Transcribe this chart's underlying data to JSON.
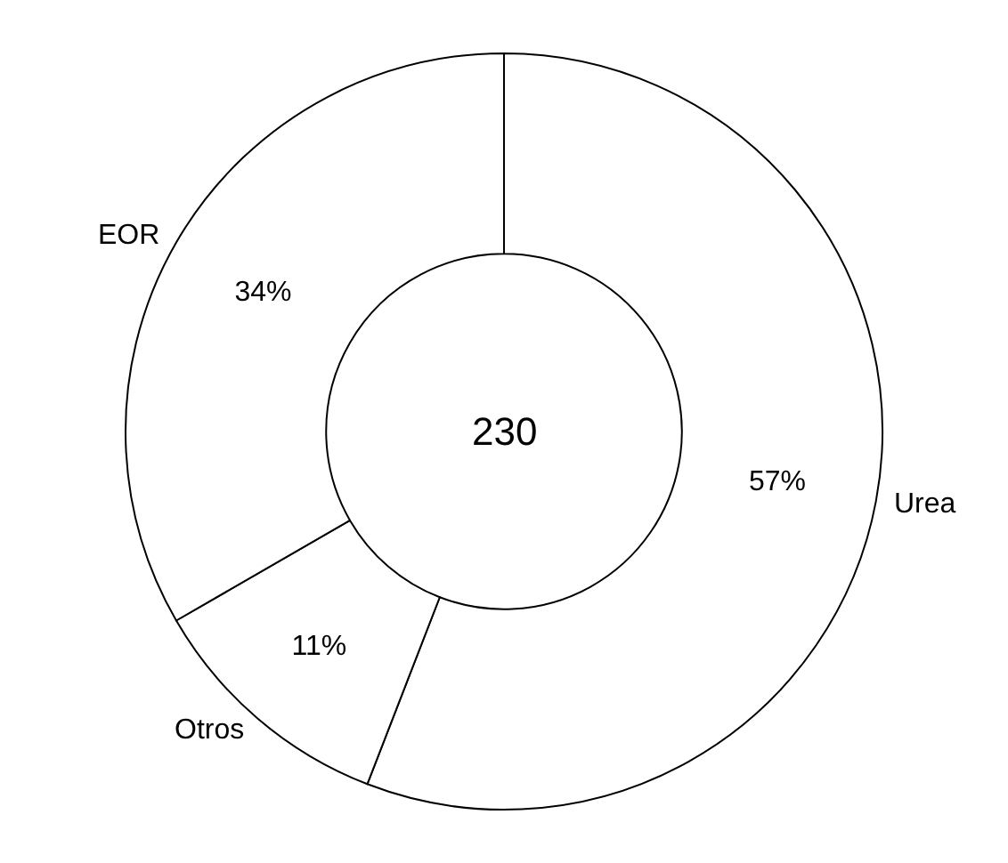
{
  "chart_data": {
    "type": "donut",
    "categories": [
      "Urea",
      "Otros",
      "EOR"
    ],
    "values": [
      57,
      11,
      34
    ],
    "colors": [
      "#ffffff",
      "#ffffff",
      "#ffffff"
    ],
    "value_labels": [
      "57%",
      "11%",
      "34%"
    ],
    "annotations": [
      "230"
    ]
  }
}
